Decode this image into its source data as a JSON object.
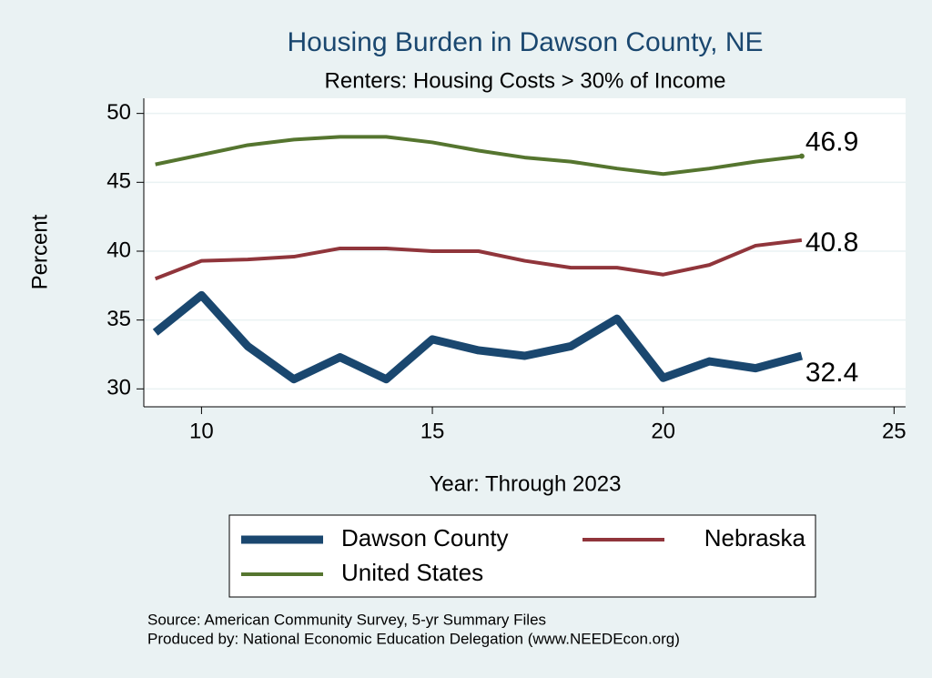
{
  "chart_data": {
    "type": "line",
    "title": "Housing Burden in Dawson County, NE",
    "subtitle": "Renters: Housing Costs > 30% of Income",
    "xlabel": "Year: Through 2023",
    "ylabel": "Percent",
    "x": [
      9,
      10,
      11,
      12,
      13,
      14,
      15,
      16,
      17,
      18,
      19,
      20,
      21,
      22,
      23
    ],
    "series": [
      {
        "name": "Dawson County",
        "color": "#1a476f",
        "values": [
          34.1,
          36.8,
          33.1,
          30.7,
          32.3,
          30.7,
          33.6,
          32.8,
          32.4,
          33.1,
          35.1,
          30.8,
          32.0,
          31.5,
          32.4
        ]
      },
      {
        "name": "Nebraska",
        "color": "#90353b",
        "values": [
          38.0,
          39.3,
          39.4,
          39.6,
          40.2,
          40.2,
          40.0,
          40.0,
          39.3,
          38.8,
          38.8,
          38.3,
          39.0,
          40.4,
          40.8
        ]
      },
      {
        "name": "United States",
        "color": "#55752f",
        "values": [
          46.3,
          47.0,
          47.7,
          48.1,
          48.3,
          48.3,
          47.9,
          47.3,
          46.8,
          46.5,
          46.0,
          45.6,
          46.0,
          46.5,
          46.9
        ]
      }
    ],
    "xlim": [
      8.75,
      25.25
    ],
    "xticks": [
      10,
      15,
      20,
      25
    ],
    "ylim": [
      28.7,
      51.1
    ],
    "yticks": [
      30,
      35,
      40,
      45,
      50
    ],
    "grid": true,
    "notes": [
      "Source: American Community Survey, 5-yr Summary Files",
      "Produced by: National Economic Education Delegation (www.NEEDEcon.org)"
    ]
  }
}
